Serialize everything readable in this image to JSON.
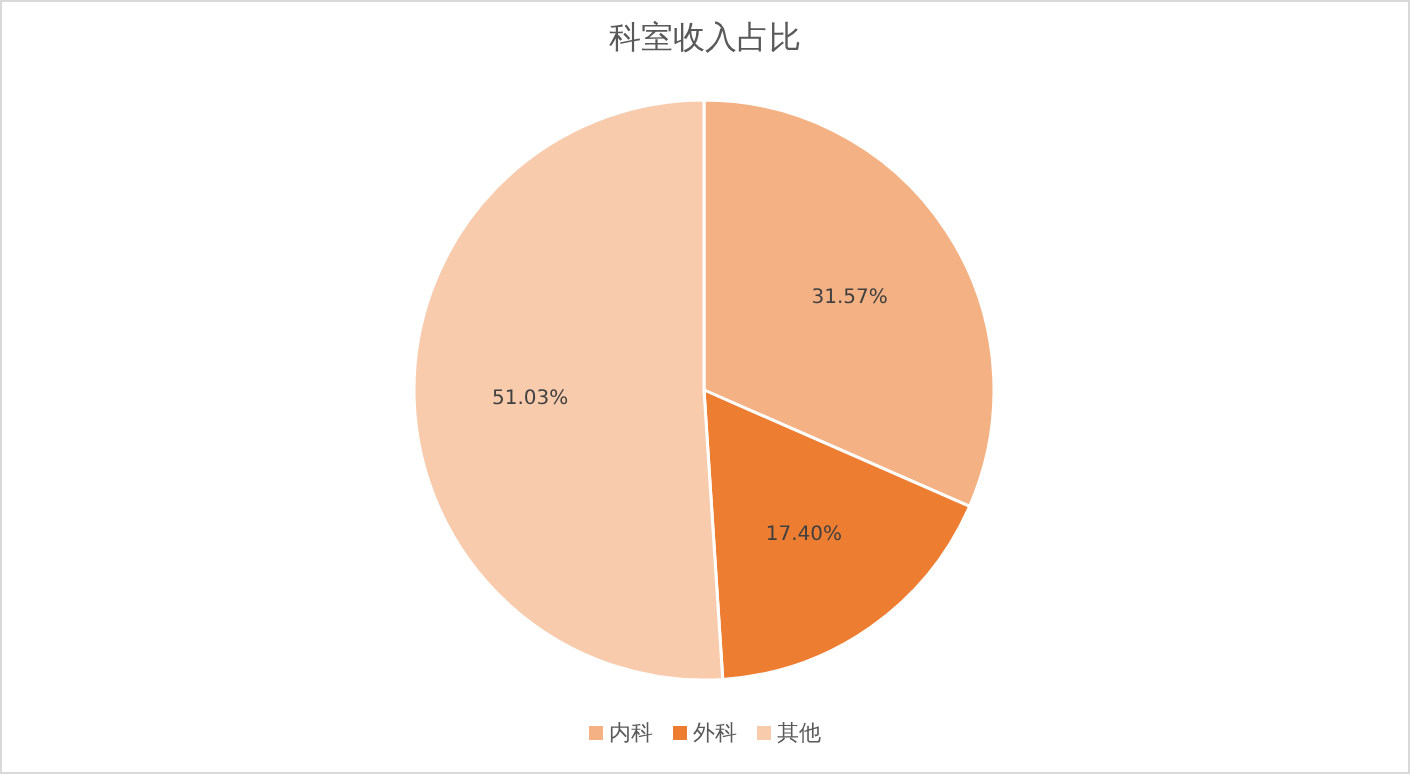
{
  "chart_data": {
    "type": "pie",
    "title": "科室收入占比",
    "categories": [
      "内科",
      "外科",
      "其他"
    ],
    "values": [
      31.57,
      17.4,
      51.03
    ],
    "colors": [
      "#f4b183",
      "#ed7d31",
      "#f8cbad"
    ],
    "value_labels": [
      "31.57%",
      "17.40%",
      "51.03%"
    ],
    "legend": "bottom"
  }
}
